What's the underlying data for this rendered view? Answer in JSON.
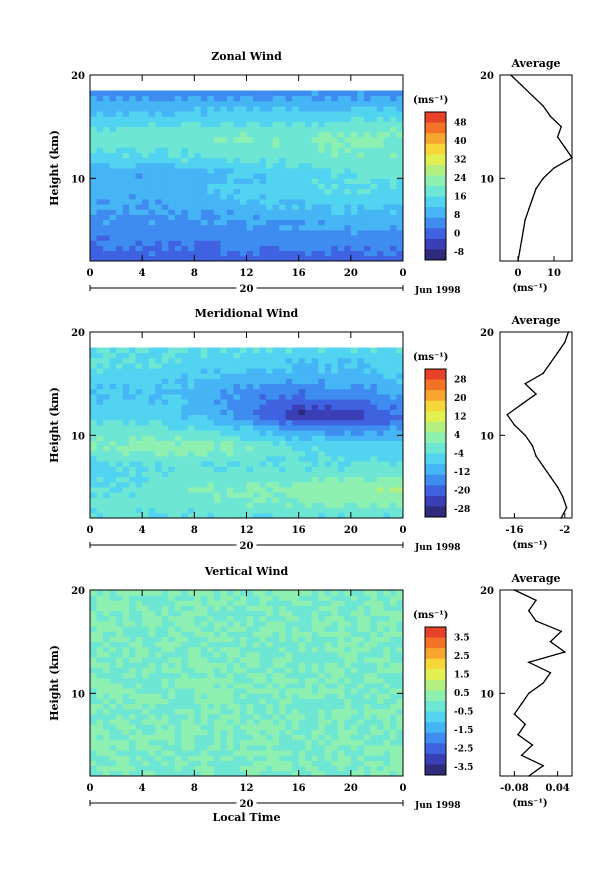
{
  "chart_data": [
    {
      "type": "heatmap",
      "title": "Zonal Wind",
      "xlabel": "",
      "ylabel": "Height (km)",
      "xlim": [
        0,
        24
      ],
      "ylim": [
        2,
        20
      ],
      "xticks": [
        "0",
        "4",
        "8",
        "12",
        "16",
        "20",
        "0"
      ],
      "yticks": [
        "10",
        "20"
      ],
      "date_label": "20",
      "date_suffix": "Jun 1998",
      "colorbar": {
        "unit": "(ms⁻¹)",
        "ticks": [
          "48",
          "40",
          "32",
          "24",
          "16",
          "8",
          "0",
          "-8"
        ],
        "range": [
          -8,
          48
        ]
      },
      "field": [
        {
          "z": [
            2,
            3.5,
            5,
            7,
            9,
            10.5,
            12,
            14,
            15.5,
            17,
            18.5,
            20
          ],
          "t": [
            0,
            4,
            8,
            12,
            16,
            20,
            24
          ],
          "u": [
            [
              2,
              2,
              2,
              2,
              2,
              2,
              2
            ],
            [
              4,
              4,
              4,
              5,
              5,
              5,
              5
            ],
            [
              6,
              6,
              6,
              7,
              7,
              8,
              8
            ],
            [
              8,
              8,
              9,
              10,
              11,
              12,
              12
            ],
            [
              10,
              10,
              11,
              13,
              15,
              16,
              16
            ],
            [
              8,
              9,
              10,
              12,
              14,
              16,
              17
            ],
            [
              14,
              15,
              16,
              17,
              18,
              19,
              19
            ],
            [
              18,
              19,
              19,
              20,
              20,
              21,
              21
            ],
            [
              14,
              15,
              15,
              16,
              16,
              17,
              17
            ],
            [
              10,
              10,
              10,
              11,
              11,
              11,
              11
            ],
            [
              6,
              6,
              6,
              6,
              6,
              6,
              6
            ],
            [
              null,
              null,
              null,
              null,
              null,
              null,
              null
            ]
          ]
        }
      ],
      "average_profile": {
        "title": "Average",
        "xlabel": "(ms⁻¹)",
        "xticks": [
          "0",
          "10"
        ],
        "xlim": [
          -5,
          15
        ],
        "yticks": [
          "10",
          "20"
        ],
        "ylim": [
          2,
          20
        ],
        "z": [
          2,
          3,
          4,
          5,
          6,
          7,
          8,
          9,
          10,
          11,
          12,
          13,
          14,
          15,
          16,
          17,
          18,
          19,
          20
        ],
        "u": [
          0,
          0.5,
          1,
          1.5,
          2,
          3,
          4,
          5,
          7,
          10,
          15,
          13,
          11,
          12,
          9,
          7,
          4,
          1,
          -2
        ]
      }
    },
    {
      "type": "heatmap",
      "title": "Meridional Wind",
      "xlabel": "",
      "ylabel": "Height (km)",
      "xlim": [
        0,
        24
      ],
      "ylim": [
        2,
        20
      ],
      "xticks": [
        "0",
        "4",
        "8",
        "12",
        "16",
        "20",
        "0"
      ],
      "yticks": [
        "10",
        "20"
      ],
      "date_label": "20",
      "date_suffix": "Jun 1998",
      "colorbar": {
        "unit": "(ms⁻¹)",
        "ticks": [
          "28",
          "20",
          "12",
          "4",
          "-4",
          "-12",
          "-20",
          "-28"
        ],
        "range": [
          -28,
          28
        ]
      },
      "field": [
        {
          "z": [
            2,
            3.5,
            5,
            7,
            9,
            10.5,
            12,
            14,
            15.5,
            17,
            18.5,
            20
          ],
          "t": [
            0,
            4,
            8,
            12,
            16,
            20,
            24
          ],
          "v": [
            [
              -4,
              -4,
              -4,
              -4,
              -4,
              -4,
              -4
            ],
            [
              -2,
              -2,
              -2,
              0,
              0,
              2,
              2
            ],
            [
              -4,
              -4,
              0,
              0,
              2,
              2,
              4
            ],
            [
              -6,
              -4,
              -4,
              -4,
              -4,
              -4,
              -4
            ],
            [
              0,
              2,
              2,
              0,
              -4,
              -6,
              -6
            ],
            [
              -2,
              -2,
              -4,
              -8,
              -12,
              -14,
              -12
            ],
            [
              -6,
              -6,
              -8,
              -14,
              -24,
              -22,
              -16
            ],
            [
              -8,
              -8,
              -10,
              -14,
              -16,
              -14,
              -12
            ],
            [
              -6,
              -6,
              -8,
              -10,
              -10,
              -10,
              -8
            ],
            [
              -4,
              -4,
              -6,
              -6,
              -8,
              -8,
              -6
            ],
            [
              -4,
              -4,
              -4,
              -4,
              -4,
              -4,
              -4
            ],
            [
              null,
              null,
              null,
              null,
              null,
              null,
              null
            ]
          ]
        }
      ],
      "average_profile": {
        "title": "Average",
        "xlabel": "(ms⁻¹)",
        "xticks": [
          "-16",
          "-2"
        ],
        "xlim": [
          -20,
          0
        ],
        "yticks": [
          "10",
          "20"
        ],
        "ylim": [
          2,
          20
        ],
        "z": [
          2,
          3,
          4,
          5,
          6,
          7,
          8,
          9,
          10,
          11,
          12,
          13,
          14,
          15,
          16,
          17,
          18,
          19,
          20
        ],
        "v": [
          -3,
          -1.5,
          -2.5,
          -4,
          -6,
          -8,
          -10,
          -11,
          -13,
          -16,
          -18,
          -14,
          -10,
          -13,
          -8,
          -6,
          -4,
          -2,
          -1
        ]
      }
    },
    {
      "type": "heatmap",
      "title": "Vertical Wind",
      "xlabel": "Local Time",
      "ylabel": "Height (km)",
      "xlim": [
        0,
        24
      ],
      "ylim": [
        2,
        20
      ],
      "xticks": [
        "0",
        "4",
        "8",
        "12",
        "16",
        "20",
        "0"
      ],
      "yticks": [
        "10",
        "20"
      ],
      "date_label": "20",
      "date_suffix": "Jun 1998",
      "colorbar": {
        "unit": "(ms⁻¹)",
        "ticks": [
          "3.5",
          "2.5",
          "1.5",
          "0.5",
          "-0.5",
          "-1.5",
          "-2.5",
          "-3.5"
        ],
        "range": [
          -3.5,
          3.5
        ]
      },
      "field": [
        {
          "z": [
            2,
            5,
            8,
            11,
            14,
            17,
            20
          ],
          "t": [
            0,
            6,
            12,
            18,
            24
          ],
          "w": [
            [
              0,
              0,
              0,
              0,
              0
            ],
            [
              0,
              0,
              0,
              0,
              0
            ],
            [
              0,
              0,
              0,
              0,
              0
            ],
            [
              0,
              0,
              0,
              0,
              0
            ],
            [
              0,
              0,
              0,
              0,
              0
            ],
            [
              0,
              0,
              0,
              0,
              0
            ],
            [
              0,
              0,
              0,
              0,
              0
            ]
          ]
        }
      ],
      "average_profile": {
        "title": "Average",
        "xlabel": "(ms⁻¹)",
        "xticks": [
          "-0.08",
          "0.04"
        ],
        "xlim": [
          -0.12,
          0.08
        ],
        "yticks": [
          "10",
          "20"
        ],
        "ylim": [
          2,
          20
        ],
        "z": [
          2,
          3,
          4,
          5,
          6,
          7,
          8,
          9,
          10,
          11,
          12,
          13,
          14,
          15,
          16,
          17,
          18,
          19,
          20
        ],
        "w": [
          -0.04,
          0.0,
          -0.06,
          -0.03,
          -0.07,
          -0.05,
          -0.08,
          -0.06,
          -0.04,
          0.0,
          0.02,
          -0.04,
          0.06,
          0.02,
          0.05,
          -0.02,
          -0.04,
          -0.02,
          -0.08
        ]
      }
    }
  ]
}
